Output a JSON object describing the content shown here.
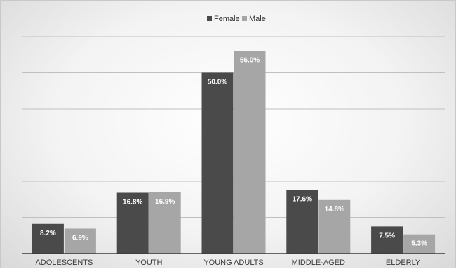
{
  "chart_data": {
    "type": "bar",
    "title": "",
    "xlabel": "",
    "ylabel": "",
    "categories": [
      "ADOLESCENTS",
      "YOUTH",
      "YOUNG ADULTS",
      "MIDDLE-AGED",
      "ELDERLY"
    ],
    "series": [
      {
        "name": "Female",
        "color": "#4a4a4a",
        "values": [
          8.2,
          16.8,
          50.0,
          17.6,
          7.5
        ],
        "labels": [
          "8.2%",
          "16.8%",
          "50.0%",
          "17.6%",
          "7.5%"
        ]
      },
      {
        "name": "Male",
        "color": "#a6a6a6",
        "values": [
          6.9,
          16.9,
          56.0,
          14.8,
          5.3
        ],
        "labels": [
          "6.9%",
          "16.9%",
          "56.0%",
          "14.8%",
          "5.3%"
        ]
      }
    ],
    "ylim": [
      0,
      60
    ],
    "grid": true,
    "legend_position": "top-center"
  }
}
